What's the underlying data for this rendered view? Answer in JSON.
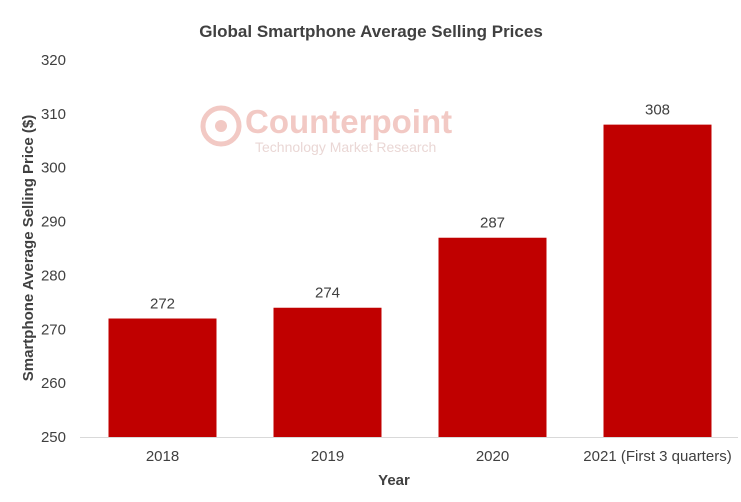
{
  "watermark": {
    "brand": "Counterpoint",
    "tagline": "Technology Market Research"
  },
  "chart_data": {
    "type": "bar",
    "title": "Global Smartphone Average Selling Prices",
    "xlabel": "Year",
    "ylabel": "Smartphone Average Selling Price ($)",
    "categories": [
      "2018",
      "2019",
      "2020",
      "2021 (First 3 quarters)"
    ],
    "values": [
      272,
      274,
      287,
      308
    ],
    "data_labels": [
      "272",
      "274",
      "287",
      "308"
    ],
    "ylim": [
      250,
      320
    ],
    "yticks": [
      250,
      260,
      270,
      280,
      290,
      300,
      310,
      320
    ],
    "bar_color": "#c00000",
    "gridlines": false,
    "legend": "none"
  }
}
